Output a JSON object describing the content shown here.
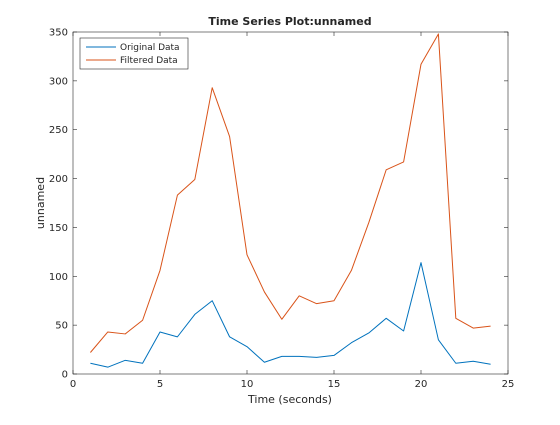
{
  "chart_data": {
    "type": "line",
    "title": "Time Series Plot:unnamed",
    "xlabel": "Time (seconds)",
    "ylabel": "unnamed",
    "xlim": [
      0,
      25
    ],
    "ylim": [
      0,
      350
    ],
    "xticks": [
      "0",
      "5",
      "10",
      "15",
      "20",
      "25"
    ],
    "yticks": [
      "0",
      "50",
      "100",
      "150",
      "200",
      "250",
      "300",
      "350"
    ],
    "grid": false,
    "legend_position": "top-left",
    "x": [
      1,
      2,
      3,
      4,
      5,
      6,
      7,
      8,
      9,
      10,
      11,
      12,
      13,
      14,
      15,
      16,
      17,
      18,
      19,
      20,
      21,
      22,
      23,
      24
    ],
    "series": [
      {
        "name": "Original Data",
        "color": "#0072BD",
        "values": [
          11,
          7,
          14,
          11,
          43,
          38,
          61,
          75,
          38,
          28,
          12,
          18,
          18,
          17,
          19,
          32,
          42,
          57,
          44,
          114,
          35,
          11,
          13,
          10
        ]
      },
      {
        "name": "Filtered Data",
        "color": "#D95319",
        "values": [
          22,
          43,
          41,
          55,
          106,
          183,
          199,
          293,
          243,
          122,
          84,
          56,
          80,
          72,
          75,
          106,
          155,
          209,
          217,
          317,
          348,
          57,
          47,
          49
        ]
      }
    ]
  }
}
